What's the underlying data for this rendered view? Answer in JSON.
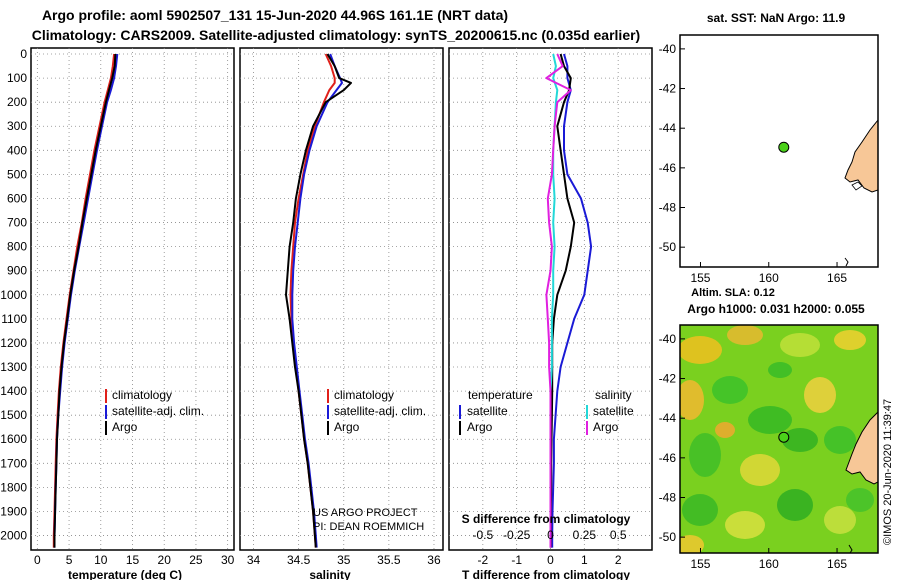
{
  "header": {
    "title_line1": "Argo profile: aoml 5902507_131 15-Jun-2020 44.96S 161.1E (NRT data)",
    "title_line2": "Climatology: CARS2009. Satellite-adjusted climatology: synTS_20200615.nc (0.035d earlier)"
  },
  "colors": {
    "climatology": "#e0201a",
    "satellite": "#1a1ad6",
    "argo": "#000000",
    "sal_satellite": "#22d8d8",
    "sal_argo": "#e020e0",
    "land": "#f7c797",
    "marker": "#4bd21a"
  },
  "chart_data": [
    {
      "type": "line",
      "id": "temperature-profile",
      "xlabel": "temperature (deg C)",
      "xlim": [
        -1,
        31
      ],
      "xticks": [
        0,
        5,
        10,
        15,
        20,
        25,
        30
      ],
      "ylim": [
        2060,
        -25
      ],
      "yticks": [
        0,
        100,
        200,
        300,
        400,
        500,
        600,
        700,
        800,
        900,
        1000,
        1100,
        1200,
        1300,
        1400,
        1500,
        1600,
        1700,
        1800,
        1900,
        2000
      ],
      "legend": [
        "climatology",
        "satellite-adj. clim.",
        "Argo"
      ],
      "depth": [
        0,
        50,
        100,
        150,
        200,
        300,
        400,
        500,
        600,
        700,
        800,
        900,
        1000,
        1100,
        1200,
        1300,
        1400,
        1500,
        1600,
        1700,
        1800,
        1900,
        2000,
        2050
      ],
      "series": [
        {
          "name": "climatology",
          "values": [
            12.1,
            11.9,
            11.6,
            11.1,
            10.6,
            9.8,
            9.0,
            8.3,
            7.6,
            7.0,
            6.3,
            5.7,
            5.1,
            4.6,
            4.1,
            3.7,
            3.4,
            3.2,
            3.0,
            2.9,
            2.8,
            2.7,
            2.6,
            2.6
          ]
        },
        {
          "name": "satellite-adj. clim.",
          "values": [
            12.6,
            12.4,
            12.1,
            11.6,
            11.0,
            10.2,
            9.4,
            8.7,
            8.0,
            7.3,
            6.6,
            5.9,
            5.3,
            4.8,
            4.3,
            3.9,
            3.6,
            3.3,
            3.1,
            3.0,
            2.9,
            2.8,
            2.7,
            2.7
          ]
        },
        {
          "name": "Argo",
          "values": [
            12.3,
            12.2,
            11.8,
            11.3,
            10.8,
            10.0,
            9.2,
            8.5,
            7.8,
            7.1,
            6.5,
            5.8,
            5.2,
            4.7,
            4.2,
            3.8,
            3.5,
            3.3,
            3.1,
            3.0,
            2.9,
            2.8,
            2.7,
            2.7
          ]
        }
      ]
    },
    {
      "type": "line",
      "id": "salinity-profile",
      "xlabel": "salinity",
      "xlim": [
        33.85,
        36.1
      ],
      "xticks": [
        34,
        34.5,
        35,
        35.5,
        36
      ],
      "ylim": [
        2060,
        -25
      ],
      "legend": [
        "climatology",
        "satellite-adj. clim.",
        "Argo"
      ],
      "annotation": [
        "US ARGO PROJECT",
        "PI: DEAN ROEMMICH"
      ],
      "depth": [
        0,
        50,
        100,
        120,
        150,
        200,
        300,
        400,
        500,
        600,
        700,
        800,
        900,
        1000,
        1100,
        1200,
        1300,
        1400,
        1500,
        1600,
        1700,
        1800,
        1900,
        2000,
        2050
      ],
      "series": [
        {
          "name": "climatology",
          "values": [
            34.8,
            34.86,
            34.9,
            34.9,
            34.84,
            34.78,
            34.68,
            34.6,
            34.55,
            34.5,
            34.46,
            34.44,
            34.42,
            34.41,
            34.42,
            34.44,
            34.47,
            34.5,
            34.53,
            34.56,
            34.6,
            34.63,
            34.66,
            34.68,
            34.69
          ]
        },
        {
          "name": "satellite-adj. clim.",
          "values": [
            34.85,
            34.9,
            34.96,
            34.98,
            34.92,
            34.82,
            34.7,
            34.62,
            34.56,
            34.52,
            34.49,
            34.46,
            34.44,
            34.43,
            34.43,
            34.45,
            34.48,
            34.51,
            34.54,
            34.57,
            34.61,
            34.64,
            34.67,
            34.69,
            34.7
          ]
        },
        {
          "name": "Argo",
          "values": [
            34.82,
            34.9,
            34.95,
            35.08,
            35.0,
            34.8,
            34.66,
            34.58,
            34.52,
            34.47,
            34.44,
            34.4,
            34.38,
            34.36,
            34.4,
            34.43,
            34.46,
            34.5,
            34.53,
            34.56,
            34.6,
            34.63,
            34.66,
            34.68,
            34.69
          ]
        }
      ]
    },
    {
      "type": "line",
      "id": "difference-profile",
      "xlabel": "T difference from climatology",
      "top_axis_label": "S difference from climatology",
      "xlim": [
        -3,
        3
      ],
      "xticks": [
        -2,
        -1,
        0,
        1,
        2
      ],
      "top_xticks": [
        -0.5,
        -0.25,
        0,
        0.25,
        0.5
      ],
      "top_xtick_labels": [
        "-0.5",
        "-0.25",
        "0",
        "0.25",
        "0.5"
      ],
      "ylim": [
        2060,
        -25
      ],
      "legend_headers": [
        "temperature",
        "salinity"
      ],
      "legend": [
        "satellite",
        "Argo",
        "satellite",
        "Argo"
      ],
      "depth": [
        0,
        50,
        100,
        150,
        200,
        300,
        400,
        500,
        600,
        700,
        800,
        900,
        1000,
        1100,
        1200,
        1300,
        1400,
        1500,
        1600,
        1700,
        1800,
        1900,
        2000,
        2050
      ],
      "series": [
        {
          "name": "T satellite",
          "quantity": "temperature",
          "values": [
            0.4,
            0.5,
            0.5,
            0.6,
            0.5,
            0.4,
            0.4,
            0.5,
            0.9,
            1.1,
            1.2,
            1.1,
            1.0,
            0.7,
            0.5,
            0.3,
            0.2,
            0.15,
            0.1,
            0.1,
            0.08,
            0.06,
            0.05,
            0.05
          ]
        },
        {
          "name": "T Argo",
          "quantity": "temperature",
          "values": [
            0.3,
            0.4,
            0.6,
            0.55,
            0.4,
            0.2,
            0.3,
            0.4,
            0.5,
            0.7,
            0.6,
            0.45,
            0.2,
            0.1,
            0.05,
            0.05,
            0.05,
            0.04,
            0.03,
            0.02,
            0.02,
            0.01,
            0.01,
            0.01
          ]
        },
        {
          "name": "S satellite",
          "quantity": "salinity",
          "values": [
            0.02,
            0.04,
            0.02,
            0.05,
            0.04,
            0.03,
            0.02,
            0.02,
            0.03,
            0.02,
            0.03,
            0.02,
            0.02,
            0.01,
            0.01,
            0.01,
            0.0,
            0.0,
            0.0,
            0.0,
            0.0,
            0.0,
            0.0,
            0.0
          ]
        },
        {
          "name": "S Argo",
          "quantity": "salinity",
          "values": [
            0.05,
            0.09,
            -0.03,
            0.15,
            0.05,
            0.03,
            0.02,
            0.01,
            -0.02,
            -0.01,
            0.01,
            0.0,
            -0.03,
            -0.02,
            -0.01,
            -0.01,
            0.0,
            0.0,
            0.0,
            0.0,
            0.0,
            0.0,
            0.0,
            0.0
          ]
        }
      ]
    },
    {
      "type": "map",
      "id": "sst-map",
      "title": "sat. SST: NaN Argo: 11.9",
      "xlim": [
        153.5,
        168
      ],
      "ylim": [
        -51,
        -39.3
      ],
      "xticks": [
        155,
        160,
        165
      ],
      "yticks": [
        -40,
        -42,
        -44,
        -46,
        -48,
        -50
      ],
      "float_position": {
        "lon": 161.1,
        "lat": -44.96
      }
    },
    {
      "type": "heatmap",
      "id": "sla-map",
      "title_line1": "Altim. SLA: 0.12",
      "title_line2": "Argo h1000: 0.031 h2000: 0.055",
      "xlim": [
        153.5,
        168
      ],
      "ylim": [
        -50.8,
        -39.3
      ],
      "xticks": [
        155,
        160,
        165
      ],
      "yticks": [
        -40,
        -42,
        -44,
        -46,
        -48,
        -50
      ],
      "float_position": {
        "lon": 161.1,
        "lat": -44.96
      }
    }
  ],
  "credit": "©IMOS 20-Jun-2020 11:39:47"
}
